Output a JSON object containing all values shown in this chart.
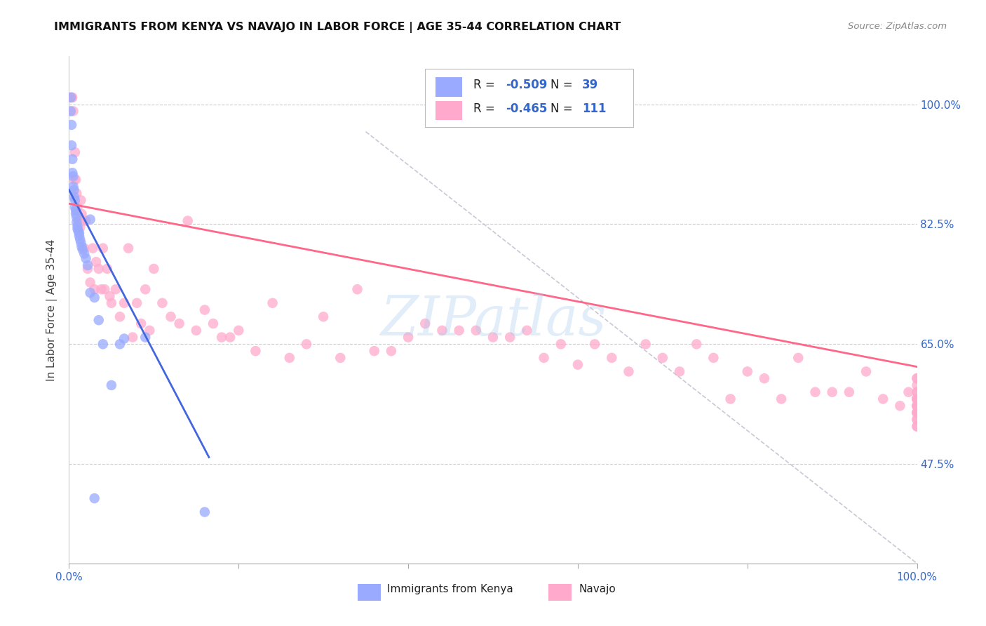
{
  "title": "IMMIGRANTS FROM KENYA VS NAVAJO IN LABOR FORCE | AGE 35-44 CORRELATION CHART",
  "source": "Source: ZipAtlas.com",
  "ylabel": "In Labor Force | Age 35-44",
  "xlim": [
    0.0,
    1.0
  ],
  "ylim": [
    0.33,
    1.07
  ],
  "y_tick_values_right": [
    0.475,
    0.65,
    0.825,
    1.0
  ],
  "y_tick_labels_right": [
    "47.5%",
    "65.0%",
    "82.5%",
    "100.0%"
  ],
  "legend_r_kenya": "-0.509",
  "legend_n_kenya": "39",
  "legend_r_navajo": "-0.465",
  "legend_n_navajo": "111",
  "kenya_color": "#99aaff",
  "navajo_color": "#ffaacc",
  "kenya_line_color": "#4466dd",
  "navajo_line_color": "#ff6688",
  "label_color": "#3366cc",
  "watermark": "ZIPatlas",
  "watermark_color": "#aaccee",
  "kenya_line_x0": 0.0,
  "kenya_line_y0": 0.875,
  "kenya_line_x1": 0.165,
  "kenya_line_y1": 0.485,
  "navajo_line_x0": 0.0,
  "navajo_line_y0": 0.855,
  "navajo_line_x1": 1.0,
  "navajo_line_y1": 0.617,
  "diag_line_x0": 0.35,
  "diag_line_y0": 0.96,
  "diag_line_x1": 1.0,
  "diag_line_y1": 0.33
}
